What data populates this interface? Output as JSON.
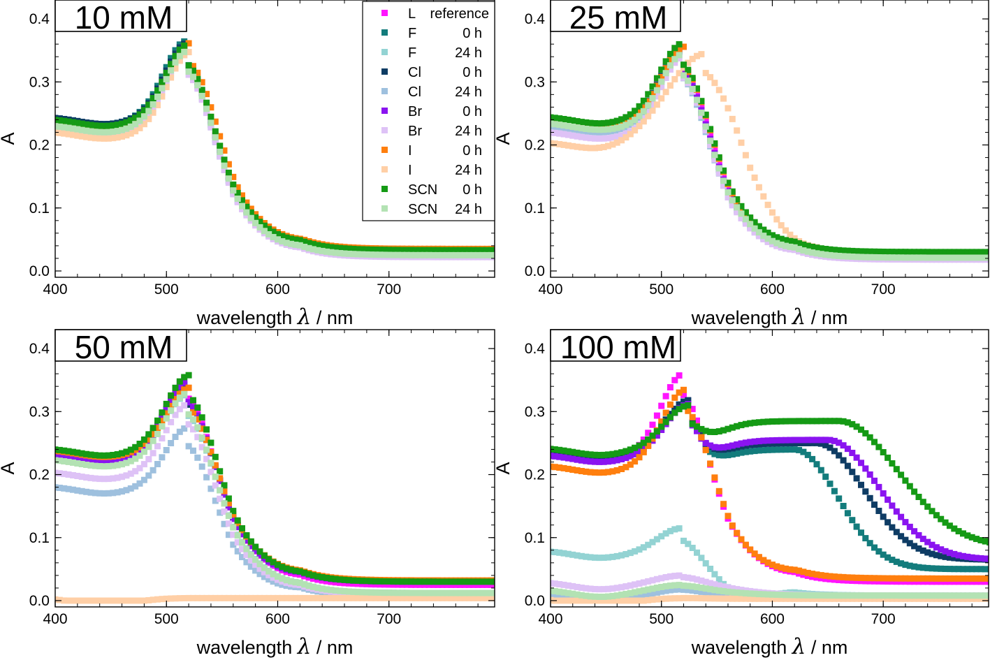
{
  "figure": {
    "y_ticks": [
      "0.0",
      "0.1",
      "0.2",
      "0.3",
      "0.4"
    ],
    "x_ticks": [
      "400",
      "500",
      "600",
      "700"
    ]
  },
  "legend": {
    "entries": [
      {
        "id": "L",
        "name": "L",
        "time": "reference",
        "color": "#ff14ff"
      },
      {
        "id": "F0",
        "name": "F",
        "time": "0 h",
        "color": "#137c7c"
      },
      {
        "id": "F24",
        "name": "F",
        "time": "24 h",
        "color": "#93d3d3"
      },
      {
        "id": "Cl0",
        "name": "Cl",
        "time": "0 h",
        "color": "#0e3c64"
      },
      {
        "id": "Cl24",
        "name": "Cl",
        "time": "24 h",
        "color": "#9ec0de"
      },
      {
        "id": "Br0",
        "name": "Br",
        "time": "0 h",
        "color": "#8a14f0"
      },
      {
        "id": "Br24",
        "name": "Br",
        "time": "24 h",
        "color": "#dec2f6"
      },
      {
        "id": "I0",
        "name": "I",
        "time": "0 h",
        "color": "#ff7f0e"
      },
      {
        "id": "I24",
        "name": "I",
        "time": "24 h",
        "color": "#ffcfa6"
      },
      {
        "id": "SCN0",
        "name": "SCN",
        "time": "0 h",
        "color": "#159a15"
      },
      {
        "id": "SCN24",
        "name": "SCN",
        "time": "24 h",
        "color": "#b3e2b3"
      }
    ]
  },
  "chart_data": [
    {
      "type": "scatter",
      "title": "10 mM",
      "xlabel": "wavelength λ / nm",
      "ylabel": "A",
      "xlim": [
        400,
        795
      ],
      "ylim": [
        -0.01,
        0.43
      ],
      "series": [
        {
          "name": "L",
          "spectrum": {
            "base": 0.24,
            "peak_nm": 520,
            "peak_a": 0.36,
            "width": 28,
            "tail": 0.025
          }
        },
        {
          "name": "F 0 h",
          "spectrum": {
            "base": 0.245,
            "peak_nm": 518,
            "peak_a": 0.365,
            "width": 28,
            "tail": 0.028
          }
        },
        {
          "name": "F 24 h",
          "spectrum": {
            "base": 0.238,
            "peak_nm": 519,
            "peak_a": 0.355,
            "width": 28,
            "tail": 0.025
          }
        },
        {
          "name": "Cl 0 h",
          "spectrum": {
            "base": 0.245,
            "peak_nm": 519,
            "peak_a": 0.362,
            "width": 28,
            "tail": 0.028
          }
        },
        {
          "name": "Cl 24 h",
          "spectrum": {
            "base": 0.235,
            "peak_nm": 519,
            "peak_a": 0.352,
            "width": 28,
            "tail": 0.024
          }
        },
        {
          "name": "Br 0 h",
          "spectrum": {
            "base": 0.24,
            "peak_nm": 520,
            "peak_a": 0.358,
            "width": 28,
            "tail": 0.026
          }
        },
        {
          "name": "Br 24 h",
          "spectrum": {
            "base": 0.228,
            "peak_nm": 520,
            "peak_a": 0.345,
            "width": 28,
            "tail": 0.022
          }
        },
        {
          "name": "I 0 h",
          "spectrum": {
            "base": 0.24,
            "peak_nm": 522,
            "peak_a": 0.362,
            "width": 30,
            "tail": 0.035
          }
        },
        {
          "name": "I 24 h",
          "spectrum": {
            "base": 0.222,
            "peak_nm": 522,
            "peak_a": 0.348,
            "width": 29,
            "tail": 0.028
          }
        },
        {
          "name": "SCN 0 h",
          "spectrum": {
            "base": 0.242,
            "peak_nm": 520,
            "peak_a": 0.36,
            "width": 29,
            "tail": 0.033
          }
        },
        {
          "name": "SCN 24 h",
          "spectrum": {
            "base": 0.232,
            "peak_nm": 520,
            "peak_a": 0.35,
            "width": 29,
            "tail": 0.025
          }
        }
      ]
    },
    {
      "type": "scatter",
      "title": "25 mM",
      "xlabel": "wavelength λ / nm",
      "ylabel": "A",
      "xlim": [
        400,
        795
      ],
      "ylim": [
        -0.01,
        0.43
      ],
      "series": [
        {
          "name": "L",
          "spectrum": {
            "base": 0.24,
            "peak_nm": 520,
            "peak_a": 0.36,
            "width": 28,
            "tail": 0.02
          }
        },
        {
          "name": "F 0 h",
          "spectrum": {
            "base": 0.24,
            "peak_nm": 519,
            "peak_a": 0.352,
            "width": 28,
            "tail": 0.022
          }
        },
        {
          "name": "F 24 h",
          "spectrum": {
            "base": 0.235,
            "peak_nm": 519,
            "peak_a": 0.345,
            "width": 28,
            "tail": 0.02
          }
        },
        {
          "name": "Cl 0 h",
          "spectrum": {
            "base": 0.24,
            "peak_nm": 519,
            "peak_a": 0.35,
            "width": 28,
            "tail": 0.022
          }
        },
        {
          "name": "Cl 24 h",
          "spectrum": {
            "base": 0.232,
            "peak_nm": 519,
            "peak_a": 0.342,
            "width": 28,
            "tail": 0.019
          }
        },
        {
          "name": "Br 0 h",
          "spectrum": {
            "base": 0.238,
            "peak_nm": 520,
            "peak_a": 0.35,
            "width": 28,
            "tail": 0.021
          }
        },
        {
          "name": "Br 24 h",
          "spectrum": {
            "base": 0.222,
            "peak_nm": 520,
            "peak_a": 0.34,
            "width": 28,
            "tail": 0.018
          }
        },
        {
          "name": "I 0 h",
          "spectrum": {
            "base": 0.24,
            "peak_nm": 521,
            "peak_a": 0.356,
            "width": 29,
            "tail": 0.028
          }
        },
        {
          "name": "I 24 h",
          "spectrum": {
            "base": 0.205,
            "peak_nm": 540,
            "peak_a": 0.345,
            "width": 48,
            "tail": 0.022
          }
        },
        {
          "name": "SCN 0 h",
          "spectrum": {
            "base": 0.246,
            "peak_nm": 520,
            "peak_a": 0.362,
            "width": 30,
            "tail": 0.03
          }
        },
        {
          "name": "SCN 24 h",
          "spectrum": {
            "base": 0.236,
            "peak_nm": 520,
            "peak_a": 0.345,
            "width": 28,
            "tail": 0.021
          }
        }
      ]
    },
    {
      "type": "scatter",
      "title": "50 mM",
      "xlabel": "wavelength λ / nm",
      "ylabel": "A",
      "xlim": [
        400,
        795
      ],
      "ylim": [
        -0.01,
        0.43
      ],
      "series": [
        {
          "name": "L",
          "spectrum": {
            "base": 0.24,
            "peak_nm": 520,
            "peak_a": 0.355,
            "width": 28,
            "tail": 0.025
          }
        },
        {
          "name": "F 0 h",
          "spectrum": {
            "base": 0.24,
            "peak_nm": 520,
            "peak_a": 0.345,
            "width": 29,
            "tail": 0.03
          }
        },
        {
          "name": "F 24 h",
          "spectrum": {
            "base": 0.228,
            "peak_nm": 520,
            "peak_a": 0.328,
            "width": 29,
            "tail": 0.012
          }
        },
        {
          "name": "Cl 0 h",
          "spectrum": {
            "base": 0.238,
            "peak_nm": 520,
            "peak_a": 0.345,
            "width": 29,
            "tail": 0.03
          }
        },
        {
          "name": "Cl 24 h",
          "spectrum": {
            "base": 0.182,
            "peak_nm": 520,
            "peak_a": 0.275,
            "width": 29,
            "tail": 0.008
          }
        },
        {
          "name": "Br 0 h",
          "spectrum": {
            "base": 0.232,
            "peak_nm": 520,
            "peak_a": 0.348,
            "width": 29,
            "tail": 0.03
          }
        },
        {
          "name": "Br 24 h",
          "spectrum": {
            "base": 0.205,
            "peak_nm": 520,
            "peak_a": 0.312,
            "width": 29,
            "tail": 0.01
          }
        },
        {
          "name": "I 0 h",
          "spectrum": {
            "base": 0.24,
            "peak_nm": 521,
            "peak_a": 0.338,
            "width": 29,
            "tail": 0.032
          }
        },
        {
          "name": "I 24 h",
          "spectrum": {
            "base": 0.004,
            "peak_nm": 520,
            "peak_a": 0.004,
            "width": 30,
            "tail": 0.004
          }
        },
        {
          "name": "SCN 0 h",
          "spectrum": {
            "base": 0.242,
            "peak_nm": 521,
            "peak_a": 0.358,
            "width": 30,
            "tail": 0.03
          }
        },
        {
          "name": "SCN 24 h",
          "spectrum": {
            "base": 0.225,
            "peak_nm": 520,
            "peak_a": 0.33,
            "width": 29,
            "tail": 0.012
          }
        }
      ]
    },
    {
      "type": "scatter",
      "title": "100 mM",
      "xlabel": "wavelength λ / nm",
      "ylabel": "A",
      "xlim": [
        400,
        795
      ],
      "ylim": [
        -0.01,
        0.43
      ],
      "series": [
        {
          "name": "L",
          "spectrum": {
            "base": 0.235,
            "peak_nm": 520,
            "peak_a": 0.36,
            "width": 28,
            "tail": 0.03
          }
        },
        {
          "name": "F 0 h",
          "spectrum": {
            "base": 0.24,
            "peak_nm": 525,
            "peak_a": 0.318,
            "width": 30,
            "tail": 0.05,
            "shoulder_nm": 620,
            "shoulder_a": 0.24,
            "shoulder_w": 55
          }
        },
        {
          "name": "F 24 h",
          "spectrum": {
            "base": 0.08,
            "peak_nm": 518,
            "peak_a": 0.115,
            "width": 28,
            "tail": 0.008
          }
        },
        {
          "name": "Cl 0 h",
          "spectrum": {
            "base": 0.24,
            "peak_nm": 525,
            "peak_a": 0.318,
            "width": 30,
            "tail": 0.065,
            "shoulder_nm": 640,
            "shoulder_a": 0.25,
            "shoulder_w": 60
          }
        },
        {
          "name": "Cl 24 h",
          "spectrum": {
            "base": 0.01,
            "peak_nm": 518,
            "peak_a": 0.018,
            "width": 28,
            "tail": 0.004
          }
        },
        {
          "name": "Br 0 h",
          "spectrum": {
            "base": 0.232,
            "peak_nm": 525,
            "peak_a": 0.312,
            "width": 30,
            "tail": 0.065,
            "shoulder_nm": 650,
            "shoulder_a": 0.255,
            "shoulder_w": 65
          }
        },
        {
          "name": "Br 24 h",
          "spectrum": {
            "base": 0.03,
            "peak_nm": 518,
            "peak_a": 0.04,
            "width": 28,
            "tail": 0.008
          }
        },
        {
          "name": "I 0 h",
          "spectrum": {
            "base": 0.215,
            "peak_nm": 522,
            "peak_a": 0.335,
            "width": 30,
            "tail": 0.035
          }
        },
        {
          "name": "I 24 h",
          "spectrum": {
            "base": 0.003,
            "peak_nm": 520,
            "peak_a": 0.004,
            "width": 30,
            "tail": 0.003
          }
        },
        {
          "name": "SCN 0 h",
          "spectrum": {
            "base": 0.243,
            "peak_nm": 525,
            "peak_a": 0.31,
            "width": 30,
            "tail": 0.085,
            "shoulder_nm": 660,
            "shoulder_a": 0.285,
            "shoulder_w": 75
          }
        },
        {
          "name": "SCN 24 h",
          "spectrum": {
            "base": 0.018,
            "peak_nm": 518,
            "peak_a": 0.025,
            "width": 28,
            "tail": 0.008
          }
        }
      ]
    }
  ]
}
